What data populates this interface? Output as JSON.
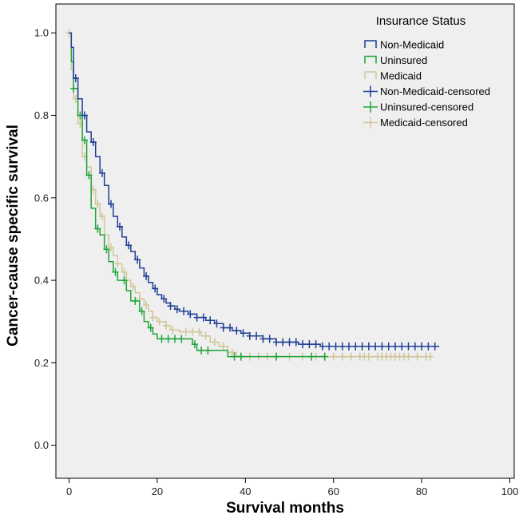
{
  "chart_data": {
    "type": "line",
    "subtype": "kaplan-meier",
    "xlabel": "Survival months",
    "ylabel": "Cancer-cause specific survival",
    "xlim": [
      -3,
      101
    ],
    "ylim": [
      -0.08,
      1.07
    ],
    "x_ticks": [
      0,
      20,
      40,
      60,
      80,
      100
    ],
    "y_ticks": [
      0.0,
      0.2,
      0.4,
      0.6,
      0.8,
      1.0
    ],
    "x_tick_labels": [
      "0",
      "20",
      "40",
      "60",
      "80",
      "100"
    ],
    "y_tick_labels": [
      "0.0",
      "0.2",
      "0.4",
      "0.6",
      "0.8",
      "1.0"
    ],
    "legend_title": "Insurance Status",
    "legend_position": "top-right",
    "background": "#efefef",
    "series": [
      {
        "name": "Non-Medicaid",
        "censored_label": "Non-Medicaid-censored",
        "color": "#1f3f96",
        "steps": [
          [
            0,
            1.0
          ],
          [
            0.5,
            0.965
          ],
          [
            1,
            0.89
          ],
          [
            2,
            0.84
          ],
          [
            3,
            0.8
          ],
          [
            4,
            0.76
          ],
          [
            5,
            0.735
          ],
          [
            6,
            0.7
          ],
          [
            7,
            0.66
          ],
          [
            8,
            0.63
          ],
          [
            9,
            0.585
          ],
          [
            10,
            0.555
          ],
          [
            11,
            0.53
          ],
          [
            12,
            0.505
          ],
          [
            13,
            0.485
          ],
          [
            14,
            0.47
          ],
          [
            15,
            0.45
          ],
          [
            16,
            0.43
          ],
          [
            17,
            0.41
          ],
          [
            18,
            0.395
          ],
          [
            19,
            0.38
          ],
          [
            20,
            0.365
          ],
          [
            21,
            0.355
          ],
          [
            22,
            0.345
          ],
          [
            23,
            0.338
          ],
          [
            24,
            0.33
          ],
          [
            25,
            0.325
          ],
          [
            27,
            0.318
          ],
          [
            29,
            0.31
          ],
          [
            31,
            0.303
          ],
          [
            33,
            0.295
          ],
          [
            35,
            0.285
          ],
          [
            37,
            0.278
          ],
          [
            39,
            0.272
          ],
          [
            41,
            0.265
          ],
          [
            44,
            0.258
          ],
          [
            47,
            0.25
          ],
          [
            52,
            0.245
          ],
          [
            57,
            0.24
          ],
          [
            84,
            0.24
          ]
        ],
        "censored_x": [
          1.5,
          3.5,
          5.5,
          7.5,
          9.5,
          11.5,
          13.5,
          15.5,
          17.5,
          19.5,
          21.5,
          23,
          24.5,
          26,
          27.5,
          29,
          30.5,
          32,
          33.5,
          35,
          36.5,
          38,
          39.5,
          41,
          42.5,
          44,
          45.5,
          47,
          48.5,
          50,
          51.5,
          53,
          54.5,
          56,
          57.5,
          59,
          60.5,
          62,
          63.5,
          65,
          66.5,
          68,
          69.5,
          71,
          72.5,
          74,
          75.5,
          77,
          78.5,
          80,
          81.5,
          83
        ]
      },
      {
        "name": "Uninsured",
        "censored_label": "Uninsured-censored",
        "color": "#1ea53a",
        "steps": [
          [
            0,
            1.0
          ],
          [
            0.5,
            0.93
          ],
          [
            1,
            0.865
          ],
          [
            2,
            0.8
          ],
          [
            3,
            0.74
          ],
          [
            4,
            0.655
          ],
          [
            5,
            0.575
          ],
          [
            6,
            0.525
          ],
          [
            7,
            0.51
          ],
          [
            8,
            0.475
          ],
          [
            9,
            0.445
          ],
          [
            10,
            0.42
          ],
          [
            11,
            0.4
          ],
          [
            13,
            0.375
          ],
          [
            14,
            0.35
          ],
          [
            16,
            0.325
          ],
          [
            17,
            0.3
          ],
          [
            18,
            0.285
          ],
          [
            19,
            0.27
          ],
          [
            20,
            0.258
          ],
          [
            28,
            0.245
          ],
          [
            29,
            0.23
          ],
          [
            36,
            0.215
          ],
          [
            58,
            0.215
          ]
        ],
        "censored_x": [
          1,
          2.5,
          3.5,
          4.5,
          6.5,
          8.5,
          10.5,
          12.5,
          15,
          16.5,
          18.5,
          21,
          22.5,
          24,
          25.5,
          28.5,
          30,
          31.5,
          37.5,
          39,
          47,
          55,
          58
        ]
      },
      {
        "name": "Medicaid",
        "censored_label": "Medicaid-censored",
        "color": "#d1c69b",
        "steps": [
          [
            0,
            1.0
          ],
          [
            0.5,
            0.91
          ],
          [
            1,
            0.84
          ],
          [
            2,
            0.78
          ],
          [
            3,
            0.7
          ],
          [
            4,
            0.675
          ],
          [
            5,
            0.62
          ],
          [
            6,
            0.585
          ],
          [
            7,
            0.555
          ],
          [
            8,
            0.51
          ],
          [
            9,
            0.48
          ],
          [
            10,
            0.46
          ],
          [
            11,
            0.44
          ],
          [
            12,
            0.42
          ],
          [
            13,
            0.4
          ],
          [
            14,
            0.385
          ],
          [
            15,
            0.37
          ],
          [
            16,
            0.355
          ],
          [
            17,
            0.34
          ],
          [
            18,
            0.325
          ],
          [
            19,
            0.31
          ],
          [
            20,
            0.3
          ],
          [
            22,
            0.29
          ],
          [
            23,
            0.28
          ],
          [
            25,
            0.275
          ],
          [
            30,
            0.265
          ],
          [
            32,
            0.25
          ],
          [
            34,
            0.24
          ],
          [
            36,
            0.225
          ],
          [
            38,
            0.215
          ],
          [
            82,
            0.215
          ]
        ],
        "censored_x": [
          0,
          1.5,
          2.5,
          3.5,
          5.5,
          6.5,
          7.5,
          9.5,
          11,
          12.5,
          14.5,
          16,
          17.5,
          19,
          20.5,
          22,
          23.5,
          26.5,
          28,
          29.5,
          31,
          33,
          35,
          37,
          39,
          41,
          43,
          45,
          47,
          50,
          53,
          56,
          58,
          60,
          62,
          64,
          66,
          67,
          68,
          70,
          71,
          72,
          73,
          74,
          75,
          76,
          77,
          79,
          81,
          82
        ]
      }
    ]
  }
}
